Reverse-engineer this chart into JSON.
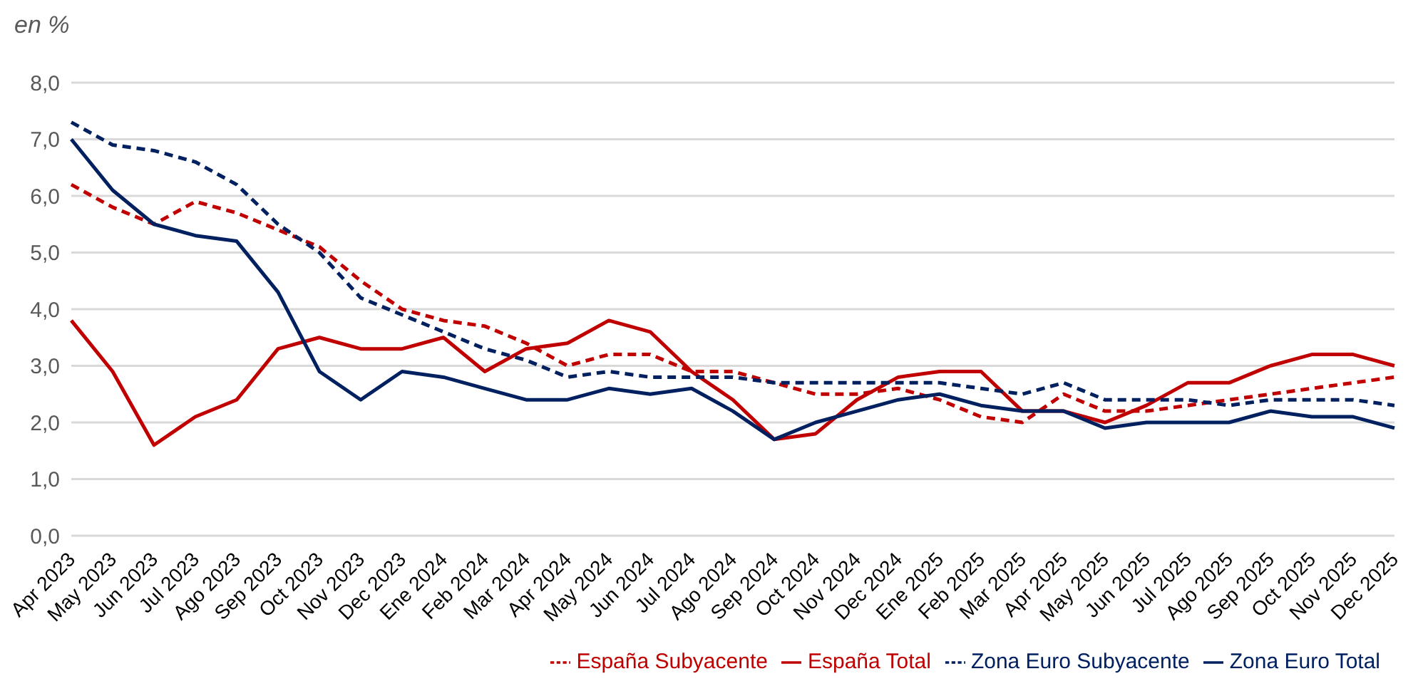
{
  "chart_data": {
    "type": "line",
    "ylabel": "en %",
    "categories": [
      "Apr 2023",
      "May 2023",
      "Jun 2023",
      "Jul 2023",
      "Ago 2023",
      "Sep 2023",
      "Oct 2023",
      "Nov 2023",
      "Dec 2023",
      "Ene 2024",
      "Feb 2024",
      "Mar 2024",
      "Apr 2024",
      "May 2024",
      "Jun 2024",
      "Jul 2024",
      "Ago 2024",
      "Sep 2024",
      "Oct 2024",
      "Nov 2024",
      "Dec 2024",
      "Ene 2025",
      "Feb 2025",
      "Mar 2025",
      "Apr 2025",
      "May 2025",
      "Jun 2025",
      "Jul 2025",
      "Ago 2025",
      "Sep 2025",
      "Oct 2025",
      "Nov 2025",
      "Dec 2025"
    ],
    "series": [
      {
        "name": "España Total",
        "color": "#c00000",
        "line_style": "solid",
        "values": [
          3.8,
          2.9,
          1.6,
          2.1,
          2.4,
          3.3,
          3.5,
          3.3,
          3.3,
          3.5,
          2.9,
          3.3,
          3.4,
          3.8,
          3.6,
          2.9,
          2.4,
          1.7,
          1.8,
          2.4,
          2.8,
          2.9,
          2.9,
          2.2,
          2.2,
          2.0,
          2.3,
          2.7,
          2.7,
          3.0,
          3.2,
          3.2,
          3.0
        ]
      },
      {
        "name": "España Subyacente",
        "color": "#c00000",
        "line_style": "dashed",
        "values": [
          6.2,
          5.8,
          5.5,
          5.9,
          5.7,
          5.4,
          5.1,
          4.5,
          4.0,
          3.8,
          3.7,
          3.4,
          3.0,
          3.2,
          3.2,
          2.9,
          2.9,
          2.7,
          2.5,
          2.5,
          2.6,
          2.4,
          2.1,
          2.0,
          2.5,
          2.2,
          2.2,
          2.3,
          2.4,
          2.5,
          2.6,
          2.7,
          2.8
        ]
      },
      {
        "name": "Zona Euro Total",
        "color": "#002060",
        "line_style": "solid",
        "values": [
          7.0,
          6.1,
          5.5,
          5.3,
          5.2,
          4.3,
          2.9,
          2.4,
          2.9,
          2.8,
          2.6,
          2.4,
          2.4,
          2.6,
          2.5,
          2.6,
          2.2,
          1.7,
          2.0,
          2.2,
          2.4,
          2.5,
          2.3,
          2.2,
          2.2,
          1.9,
          2.0,
          2.0,
          2.0,
          2.2,
          2.1,
          2.1,
          1.9
        ]
      },
      {
        "name": "Zona Euro Subyacente",
        "color": "#002060",
        "line_style": "dashed",
        "values": [
          7.3,
          6.9,
          6.8,
          6.6,
          6.2,
          5.5,
          5.0,
          4.2,
          3.9,
          3.6,
          3.3,
          3.1,
          2.8,
          2.9,
          2.8,
          2.8,
          2.8,
          2.7,
          2.7,
          2.7,
          2.7,
          2.7,
          2.6,
          2.5,
          2.7,
          2.4,
          2.4,
          2.4,
          2.3,
          2.4,
          2.4,
          2.4,
          2.3
        ]
      }
    ],
    "ylim": [
      0,
      8
    ],
    "yticks": [
      {
        "value": 0,
        "label": "0,0"
      },
      {
        "value": 1,
        "label": "1,0"
      },
      {
        "value": 2,
        "label": "2,0"
      },
      {
        "value": 3,
        "label": "3,0"
      },
      {
        "value": 4,
        "label": "4,0"
      },
      {
        "value": 5,
        "label": "5,0"
      },
      {
        "value": 6,
        "label": "6,0"
      },
      {
        "value": 7,
        "label": "7,0"
      },
      {
        "value": 8,
        "label": "8,0"
      }
    ],
    "grid": "y",
    "legend": "bottom",
    "marker": "none"
  }
}
